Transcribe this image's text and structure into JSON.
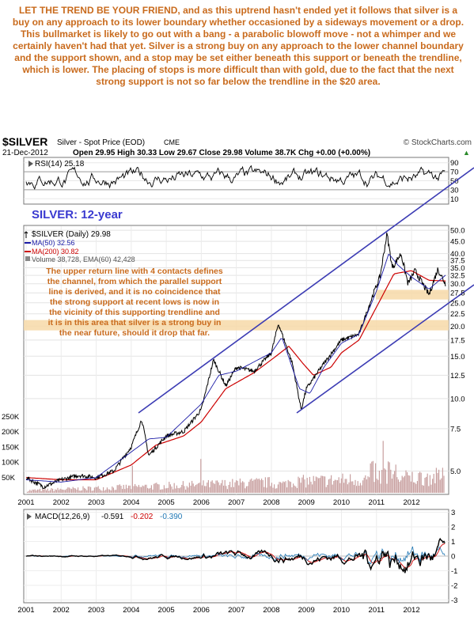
{
  "commentary": "LET THE TREND BE YOUR FRIEND, and as this uptrend hasn't ended yet it follows that silver is a buy on any approach to its lower boundary whether occasioned by a sideways movement or a drop. This bullmarket is likely to go out with a bang - a parabolic blowoff move - not a whimper and we certainly haven't had that yet. Silver is a strong buy on any approach to the lower channel boundary and the support shown, and a stop may be set either beneath this support or beneath the trendline, which is lower. The placing of stops is more difficult than with gold, due to the fact that the next strong support is not so far below the trendline in the $20 area.",
  "header": {
    "symbol": "$SILVER",
    "name": "Silver - Spot Price (EOD)",
    "exchange": "CME",
    "credit": "© StockCharts.com",
    "date": "21-Dec-2012",
    "ohlc": "Open 29.95  High 30.33  Low 29.67  Close 29.98  Volume 38.7K  Chg +0.00 (+0.00%)",
    "change_marker": "▲"
  },
  "rsi": {
    "label": "RSI(14) 25.18",
    "ticks": [
      "90",
      "70",
      "50",
      "30",
      "10"
    ]
  },
  "main": {
    "title": "SILVER: 12-year",
    "legend": [
      {
        "text": "$SILVER (Daily) 29.98",
        "color": "#000000"
      },
      {
        "text": "MA(50) 32.56",
        "color": "#1a1aa6"
      },
      {
        "text": "MA(200) 30.82",
        "color": "#cc0000"
      },
      {
        "text": "Volume 38,728, EMA(60) 42,428",
        "color": "#555555"
      }
    ],
    "annotation": [
      "The upper return line with 4 contacts defines",
      "the channel, from which the parallel support",
      "line is derived, and it is no coincidence that",
      "the strong support at recent lows is now in",
      "the vicinity of this supporting trendline and",
      "it is in this area that silver is a strong buy in",
      "the near future, should it drop that far."
    ],
    "price_ticks": [
      "50.0",
      "45.0",
      "40.0",
      "37.5",
      "35.0",
      "32.5",
      "30.0",
      "27.5",
      "25.0",
      "22.5",
      "20.0",
      "17.5",
      "15.0",
      "12.5",
      "10.0",
      "7.5",
      "5.0"
    ],
    "volume_ticks": [
      "250K",
      "200K",
      "150K",
      "100K",
      "50K"
    ]
  },
  "x_labels": [
    "2001",
    "2002",
    "2003",
    "2004",
    "2005",
    "2006",
    "2007",
    "2008",
    "2009",
    "2010",
    "2011",
    "2012"
  ],
  "macd": {
    "label": "MACD(12,26,9)",
    "values": [
      "-0.591",
      "-0.202",
      "-0.390"
    ],
    "value_colors": [
      "#000000",
      "#cc0000",
      "#1f77b4"
    ],
    "ticks": [
      "3",
      "2",
      "1",
      "0",
      "-1",
      "-2",
      "-3"
    ]
  },
  "colors": {
    "commentary": "#c96b1d",
    "annotation": "#c96b1d",
    "title": "#3a3ad0",
    "channel": "#3c3cb4",
    "price": "#000000",
    "ma50": "#1a1aa6",
    "ma200": "#cc0000",
    "volume": "#c8a0a0",
    "support_band": "#f7d9a8"
  },
  "chart_data": {
    "type": "line",
    "title": "SILVER: 12-year",
    "x_range": [
      "2001-01",
      "2012-12"
    ],
    "y_scale": "log",
    "ylim": [
      4,
      52
    ],
    "series": [
      {
        "name": "$SILVER (Daily)",
        "x": [
          2001.0,
          2001.5,
          2002.0,
          2002.5,
          2003.0,
          2003.5,
          2004.0,
          2004.3,
          2004.5,
          2005.0,
          2005.5,
          2006.0,
          2006.35,
          2006.7,
          2007.0,
          2007.5,
          2008.0,
          2008.2,
          2008.6,
          2008.85,
          2009.0,
          2009.5,
          2010.0,
          2010.5,
          2010.9,
          2011.1,
          2011.3,
          2011.45,
          2011.7,
          2011.9,
          2012.1,
          2012.5,
          2012.75,
          2012.97
        ],
        "values": [
          4.7,
          4.3,
          4.6,
          4.8,
          4.7,
          5.0,
          6.3,
          8.2,
          5.8,
          7.0,
          7.3,
          9.0,
          14.5,
          11.3,
          13.5,
          13.0,
          15.5,
          20.5,
          14.0,
          9.0,
          11.0,
          14.0,
          17.5,
          18.5,
          27.0,
          32.0,
          48.5,
          35.0,
          40.0,
          30.0,
          34.0,
          27.0,
          34.5,
          29.98
        ]
      },
      {
        "name": "MA(50)",
        "x": [
          2001.0,
          2002.0,
          2003.0,
          2004.0,
          2004.5,
          2005.0,
          2006.0,
          2006.5,
          2007.0,
          2008.0,
          2008.3,
          2008.8,
          2009.1,
          2009.5,
          2010.0,
          2010.5,
          2011.0,
          2011.35,
          2011.6,
          2012.0,
          2012.5,
          2012.97
        ],
        "values": [
          4.6,
          4.5,
          4.7,
          6.0,
          6.8,
          6.9,
          9.5,
          12.5,
          13.0,
          15.5,
          18.0,
          11.0,
          10.5,
          13.5,
          17.0,
          18.5,
          28.0,
          40.0,
          36.0,
          32.0,
          28.5,
          32.56
        ]
      },
      {
        "name": "MA(200)",
        "x": [
          2001.0,
          2002.0,
          2003.0,
          2004.0,
          2004.7,
          2005.5,
          2006.0,
          2006.7,
          2007.5,
          2008.0,
          2008.5,
          2008.9,
          2009.2,
          2009.7,
          2010.0,
          2010.5,
          2011.0,
          2011.5,
          2012.0,
          2012.5,
          2012.97
        ],
        "values": [
          4.7,
          4.6,
          4.6,
          5.3,
          6.4,
          7.0,
          8.0,
          11.0,
          12.8,
          14.5,
          16.5,
          14.0,
          12.5,
          13.5,
          15.5,
          17.5,
          24.0,
          33.0,
          34.0,
          31.0,
          30.82
        ]
      }
    ],
    "volume_ylim": [
      0,
      260000
    ],
    "rsi_ylim": [
      0,
      100
    ],
    "macd_ylim": [
      -3,
      3
    ]
  }
}
